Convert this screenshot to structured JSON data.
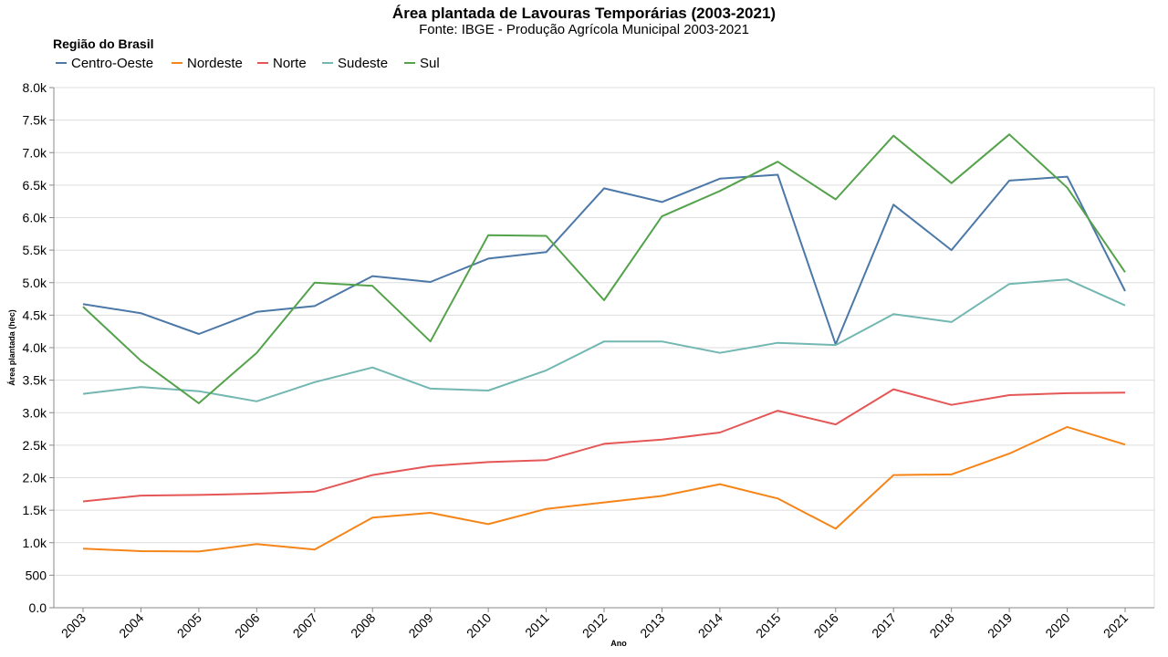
{
  "chart_data": {
    "type": "line",
    "title": "Área plantada de Lavouras Temporárias (2003-2021)",
    "subtitle": "Fonte: IBGE - Produção Agrícola Municipal 2003-2021",
    "xlabel": "Ano",
    "ylabel": "Área plantada (hec)",
    "legend_title": "Região do Brasil",
    "legend_position": "top-left",
    "grid": true,
    "ylim": [
      0,
      8000
    ],
    "y_ticks": [
      0,
      500,
      1000,
      1500,
      2000,
      2500,
      3000,
      3500,
      4000,
      4500,
      5000,
      5500,
      6000,
      6500,
      7000,
      7500,
      8000
    ],
    "y_tick_labels": [
      "0.0",
      "500",
      "1.0k",
      "1.5k",
      "2.0k",
      "2.5k",
      "3.0k",
      "3.5k",
      "4.0k",
      "4.5k",
      "5.0k",
      "5.5k",
      "6.0k",
      "6.5k",
      "7.0k",
      "7.5k",
      "8.0k"
    ],
    "categories": [
      "2003",
      "2004",
      "2005",
      "2006",
      "2007",
      "2008",
      "2009",
      "2010",
      "2011",
      "2012",
      "2013",
      "2014",
      "2015",
      "2016",
      "2017",
      "2018",
      "2019",
      "2020",
      "2021"
    ],
    "series": [
      {
        "name": "Centro-Oeste",
        "color": "#4c78a8",
        "values": [
          4670,
          4530,
          4210,
          4550,
          4640,
          5100,
          5010,
          5370,
          5470,
          6450,
          6240,
          6600,
          6660,
          4050,
          6200,
          5500,
          6570,
          6630,
          4870
        ]
      },
      {
        "name": "Nordeste",
        "color": "#f58518",
        "values": [
          910,
          870,
          865,
          980,
          895,
          1385,
          1460,
          1285,
          1520,
          1620,
          1720,
          1900,
          1680,
          1215,
          2040,
          2050,
          2370,
          2780,
          2510
        ]
      },
      {
        "name": "Norte",
        "color": "#e45756",
        "values": [
          1635,
          1725,
          1735,
          1755,
          1785,
          2040,
          2180,
          2240,
          2270,
          2520,
          2585,
          2695,
          3030,
          2820,
          3360,
          3120,
          3270,
          3300,
          3310
        ]
      },
      {
        "name": "Sudeste",
        "color": "#72b7b2",
        "values": [
          3290,
          3395,
          3330,
          3175,
          3470,
          3695,
          3370,
          3340,
          3650,
          4095,
          4095,
          3920,
          4075,
          4040,
          4515,
          4395,
          4980,
          5050,
          4650
        ]
      },
      {
        "name": "Sul",
        "color": "#54a24b",
        "values": [
          4630,
          3800,
          3145,
          3920,
          5000,
          4950,
          4095,
          5730,
          5720,
          4730,
          6020,
          6410,
          6860,
          6280,
          7260,
          6530,
          7280,
          6460,
          5160
        ]
      }
    ]
  }
}
